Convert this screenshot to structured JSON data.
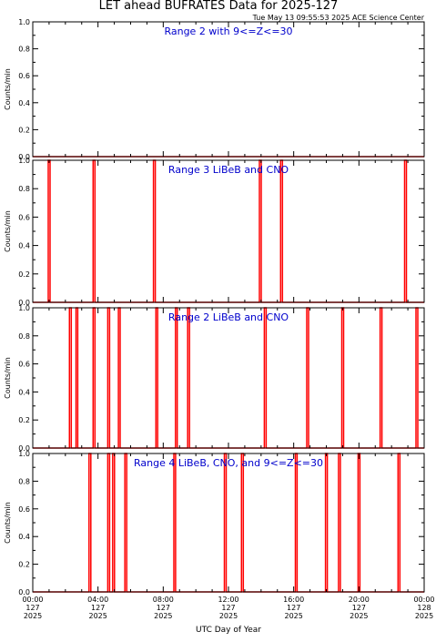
{
  "header": {
    "title": "LET ahead BUFRATES Data for 2025-127",
    "timestamp": "Tue May 13 09:55:53 2025 ACE Science Center"
  },
  "xlabel": "UTC Day of Year",
  "x_ticks": [
    {
      "hour": 0,
      "lines": [
        "00:00",
        "127",
        "2025"
      ]
    },
    {
      "hour": 4,
      "lines": [
        "04:00",
        "127",
        "2025"
      ]
    },
    {
      "hour": 8,
      "lines": [
        "08:00",
        "127",
        "2025"
      ]
    },
    {
      "hour": 12,
      "lines": [
        "12:00",
        "127",
        "2025"
      ]
    },
    {
      "hour": 16,
      "lines": [
        "16:00",
        "127",
        "2025"
      ]
    },
    {
      "hour": 20,
      "lines": [
        "20:00",
        "127",
        "2025"
      ]
    },
    {
      "hour": 24,
      "lines": [
        "00:00",
        "128",
        "2025"
      ]
    }
  ],
  "colors": {
    "data": "#ff0000",
    "label": "#0000cc",
    "axis": "#000000"
  },
  "chart_data": [
    {
      "type": "line",
      "title": "Range 2 with 9<=Z<=30",
      "ylabel": "Counts/min",
      "xlim": [
        0,
        24
      ],
      "ylim": [
        0,
        1
      ],
      "y_ticks": [
        "0.0",
        "0.2",
        "0.4",
        "0.6",
        "0.8",
        "1.0"
      ],
      "spikes": []
    },
    {
      "type": "line",
      "title": "Range 3 LiBeB and CNO",
      "ylabel": "Counts/min",
      "xlim": [
        0,
        24
      ],
      "ylim": [
        0,
        1
      ],
      "y_ticks": [
        "0.0",
        "0.2",
        "0.4",
        "0.6",
        "0.8",
        "1.0"
      ],
      "spikes": [
        0.95,
        3.7,
        7.4,
        13.9,
        15.2,
        22.8
      ]
    },
    {
      "type": "line",
      "title": "Range 2 LiBeB and CNO",
      "ylabel": "Counts/min",
      "xlim": [
        0,
        24
      ],
      "ylim": [
        0,
        1
      ],
      "y_ticks": [
        "0.0",
        "0.2",
        "0.4",
        "0.6",
        "0.8",
        "1.0"
      ],
      "spikes": [
        2.25,
        2.65,
        3.7,
        4.6,
        5.25,
        7.55,
        8.75,
        9.5,
        14.2,
        16.8,
        18.95,
        21.3,
        23.5
      ]
    },
    {
      "type": "line",
      "title": "Range 4 LiBeB, CNO, and 9<=Z<=30",
      "ylabel": "Counts/min",
      "xlim": [
        0,
        24
      ],
      "ylim": [
        0,
        1
      ],
      "y_ticks": [
        "0.0",
        "0.2",
        "0.4",
        "0.6",
        "0.8",
        "1.0"
      ],
      "spikes": [
        3.45,
        4.6,
        4.9,
        5.65,
        8.65,
        11.75,
        12.8,
        16.1,
        17.95,
        18.75,
        19.95,
        22.4
      ]
    }
  ]
}
